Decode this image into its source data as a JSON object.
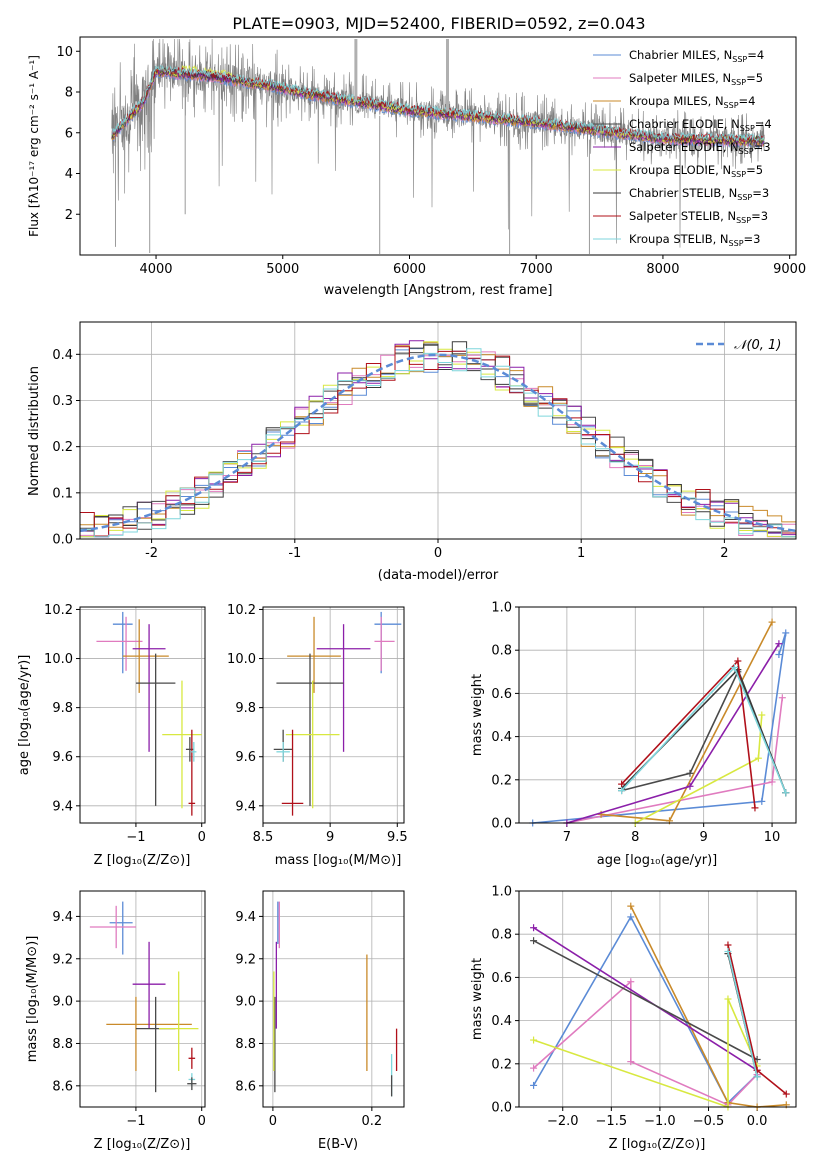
{
  "chart_data": [
    {
      "id": "spectrum",
      "type": "line",
      "title": "PLATE=0903, MJD=52400, FIBERID=0592, z=0.043",
      "xlabel": "wavelength [Angstrom, rest frame]",
      "ylabel": "Flux [fλ10⁻¹⁷ erg cm⁻² s⁻¹ A⁻¹]",
      "xlim": [
        3400,
        9050
      ],
      "ylim": [
        0,
        10.7
      ],
      "xticks": [
        4000,
        5000,
        6000,
        7000,
        8000,
        9000
      ],
      "yticks": [
        2,
        4,
        6,
        8,
        10
      ],
      "grid": false,
      "legend_position": "top-right",
      "legend": [
        {
          "label": "Chabrier MILES, N",
          "sub": "SSP",
          "tail": "=4",
          "color": "#5b8bd6"
        },
        {
          "label": "Salpeter MILES, N",
          "sub": "SSP",
          "tail": "=5",
          "color": "#e07bbf"
        },
        {
          "label": "Kroupa MILES, N",
          "sub": "SSP",
          "tail": "=4",
          "color": "#c98a2a"
        },
        {
          "label": "Chabrier ELODIE, N",
          "sub": "SSP",
          "tail": "=4",
          "color": "#4a4a4a"
        },
        {
          "label": "Salpeter ELODIE, N",
          "sub": "SSP",
          "tail": "=3",
          "color": "#8b1fa9"
        },
        {
          "label": "Kroupa ELODIE, N",
          "sub": "SSP",
          "tail": "=5",
          "color": "#d8e840"
        },
        {
          "label": "Chabrier STELIB, N",
          "sub": "SSP",
          "tail": "=3",
          "color": "#3a3a3a"
        },
        {
          "label": "Salpeter STELIB, N",
          "sub": "SSP",
          "tail": "=3",
          "color": "#b0101a"
        },
        {
          "label": "Kroupa STELIB, N",
          "sub": "SSP",
          "tail": "=3",
          "color": "#7fd6dc"
        }
      ],
      "data_color": "#808080",
      "data_x_range": [
        3650,
        8800
      ],
      "model_x_range": [
        3650,
        8800
      ],
      "continuum_points": [
        [
          3650,
          5.8
        ],
        [
          3900,
          7.5
        ],
        [
          4000,
          9.0
        ],
        [
          4200,
          8.9
        ],
        [
          4500,
          8.7
        ],
        [
          4900,
          8.3
        ],
        [
          5200,
          7.9
        ],
        [
          5600,
          7.5
        ],
        [
          6000,
          7.1
        ],
        [
          6500,
          6.8
        ],
        [
          7000,
          6.5
        ],
        [
          7500,
          6.1
        ],
        [
          8000,
          5.7
        ],
        [
          8800,
          5.6
        ]
      ]
    },
    {
      "id": "residuals",
      "type": "histogram",
      "xlabel": "(data-model)/error",
      "ylabel": "Normed distribution",
      "xlim": [
        -2.5,
        2.5
      ],
      "ylim": [
        0,
        0.47
      ],
      "xticks": [
        -2,
        -1,
        0,
        1,
        2
      ],
      "yticks": [
        0.0,
        0.1,
        0.2,
        0.3,
        0.4
      ],
      "grid": true,
      "legend": [
        {
          "label": "𝒩(0, 1)",
          "color": "#5b8bd6",
          "style": "dashed"
        }
      ],
      "bin_width": 0.1,
      "series_colors": [
        "#5b8bd6",
        "#e07bbf",
        "#c98a2a",
        "#4a4a4a",
        "#8b1fa9",
        "#d8e840",
        "#3a3a3a",
        "#b0101a",
        "#7fd6dc"
      ]
    },
    {
      "id": "age-vs-Z",
      "type": "errorbar",
      "xlabel": "Z [log₁₀(Z/Z⊙)]",
      "ylabel": "age  [log₁₀(age/yr)]",
      "xlim": [
        -1.85,
        0.05
      ],
      "ylim": [
        9.33,
        10.21
      ],
      "xticks": [
        -1,
        0
      ],
      "xtick_labels": [
        "−1",
        "0"
      ],
      "yticks": [
        9.4,
        9.6,
        9.8,
        10.0,
        10.2
      ],
      "grid": true,
      "points": [
        {
          "x": -1.2,
          "y": 10.14,
          "xerr": [
            0.15,
            0.15
          ],
          "yerr": [
            0.2,
            0.05
          ],
          "color": "#5b8bd6"
        },
        {
          "x": -1.15,
          "y": 10.07,
          "xerr": [
            0.45,
            0.25
          ],
          "yerr": [
            0.12,
            0.1
          ],
          "color": "#e07bbf"
        },
        {
          "x": -0.95,
          "y": 10.01,
          "xerr": [
            0.25,
            0.45
          ],
          "yerr": [
            0.15,
            0.15
          ],
          "color": "#c98a2a"
        },
        {
          "x": -0.8,
          "y": 10.04,
          "xerr": [
            0.25,
            0.25
          ],
          "yerr": [
            0.42,
            0.1
          ],
          "color": "#8b1fa9"
        },
        {
          "x": -0.7,
          "y": 9.9,
          "xerr": [
            0.3,
            0.3
          ],
          "yerr": [
            0.5,
            0.12
          ],
          "color": "#4a4a4a"
        },
        {
          "x": -0.3,
          "y": 9.69,
          "xerr": [
            0.3,
            0.3
          ],
          "yerr": [
            0.3,
            0.22
          ],
          "color": "#d8e840"
        },
        {
          "x": -0.18,
          "y": 9.63,
          "xerr": [
            0.06,
            0.06
          ],
          "yerr": [
            0.05,
            0.05
          ],
          "color": "#4a4a4a"
        },
        {
          "x": -0.15,
          "y": 9.41,
          "xerr": [
            0.05,
            0.05
          ],
          "yerr": [
            0.05,
            0.3
          ],
          "color": "#b0101a"
        },
        {
          "x": -0.12,
          "y": 9.62,
          "xerr": [
            0.04,
            0.04
          ],
          "yerr": [
            0.04,
            0.04
          ],
          "color": "#7fd6dc"
        }
      ]
    },
    {
      "id": "age-vs-mass",
      "type": "errorbar",
      "xlabel": "mass [log₁₀(M/M⊙)]",
      "ylabel": "",
      "xlim": [
        8.5,
        9.55
      ],
      "ylim": [
        9.33,
        10.21
      ],
      "xticks": [
        8.5,
        9.0,
        9.5
      ],
      "yticks": [
        9.4,
        9.6,
        9.8,
        10.0,
        10.2
      ],
      "grid": true,
      "points": [
        {
          "x": 9.38,
          "y": 10.14,
          "xerr": [
            0.05,
            0.15
          ],
          "yerr": [
            0.2,
            0.05
          ],
          "color": "#5b8bd6"
        },
        {
          "x": 9.38,
          "y": 10.07,
          "xerr": [
            0.05,
            0.1
          ],
          "yerr": [
            0.12,
            0.1
          ],
          "color": "#e07bbf"
        },
        {
          "x": 8.88,
          "y": 10.01,
          "xerr": [
            0.2,
            0.2
          ],
          "yerr": [
            0.15,
            0.16
          ],
          "color": "#c98a2a"
        },
        {
          "x": 9.1,
          "y": 10.04,
          "xerr": [
            0.2,
            0.2
          ],
          "yerr": [
            0.42,
            0.1
          ],
          "color": "#8b1fa9"
        },
        {
          "x": 8.85,
          "y": 9.9,
          "xerr": [
            0.25,
            0.25
          ],
          "yerr": [
            0.5,
            0.12
          ],
          "color": "#4a4a4a"
        },
        {
          "x": 8.87,
          "y": 9.69,
          "xerr": [
            0.2,
            0.2
          ],
          "yerr": [
            0.3,
            0.22
          ],
          "color": "#d8e840"
        },
        {
          "x": 8.65,
          "y": 9.63,
          "xerr": [
            0.07,
            0.07
          ],
          "yerr": [
            0.05,
            0.08
          ],
          "color": "#4a4a4a"
        },
        {
          "x": 8.72,
          "y": 9.41,
          "xerr": [
            0.08,
            0.08
          ],
          "yerr": [
            0.05,
            0.3
          ],
          "color": "#b0101a"
        },
        {
          "x": 8.65,
          "y": 9.62,
          "xerr": [
            0.05,
            0.05
          ],
          "yerr": [
            0.04,
            0.04
          ],
          "color": "#7fd6dc"
        }
      ]
    },
    {
      "id": "weight-vs-age",
      "type": "line",
      "xlabel": "age  [log₁₀(age/yr)]",
      "ylabel": "mass weight",
      "xlim": [
        6.3,
        10.35
      ],
      "ylim": [
        0,
        1.0
      ],
      "xticks": [
        7,
        8,
        9,
        10
      ],
      "yticks": [
        0.0,
        0.2,
        0.4,
        0.6,
        0.8,
        1.0
      ],
      "grid": true,
      "series": [
        {
          "color": "#5b8bd6",
          "points": [
            [
              6.5,
              0.0
            ],
            [
              9.85,
              0.1
            ],
            [
              10.2,
              0.88
            ],
            [
              10.1,
              0.78
            ]
          ]
        },
        {
          "color": "#e07bbf",
          "points": [
            [
              7.0,
              0.0
            ],
            [
              10.0,
              0.19
            ],
            [
              10.15,
              0.58
            ]
          ]
        },
        {
          "color": "#c98a2a",
          "points": [
            [
              7.5,
              0.04
            ],
            [
              8.5,
              0.01
            ],
            [
              10.0,
              0.93
            ]
          ]
        },
        {
          "color": "#8b1fa9",
          "points": [
            [
              7.0,
              0.0
            ],
            [
              8.8,
              0.17
            ],
            [
              10.1,
              0.83
            ]
          ]
        },
        {
          "color": "#4a4a4a",
          "points": [
            [
              7.8,
              0.15
            ],
            [
              8.8,
              0.23
            ],
            [
              9.5,
              0.7
            ],
            [
              10.2,
              0.14
            ]
          ]
        },
        {
          "color": "#d8e840",
          "points": [
            [
              8.0,
              0.0
            ],
            [
              9.8,
              0.3
            ],
            [
              9.85,
              0.5
            ]
          ]
        },
        {
          "color": "#3a3a3a",
          "points": [
            [
              7.8,
              0.16
            ],
            [
              9.5,
              0.71
            ],
            [
              10.2,
              0.14
            ]
          ]
        },
        {
          "color": "#b0101a",
          "points": [
            [
              7.8,
              0.18
            ],
            [
              9.5,
              0.75
            ],
            [
              9.75,
              0.07
            ]
          ]
        },
        {
          "color": "#7fd6dc",
          "points": [
            [
              7.8,
              0.15
            ],
            [
              9.45,
              0.72
            ],
            [
              10.2,
              0.14
            ]
          ]
        }
      ]
    },
    {
      "id": "mass-vs-Z",
      "type": "errorbar",
      "xlabel": "Z [log₁₀(Z/Z⊙)]",
      "ylabel": "mass [log₁₀(M/M⊙)]",
      "xlim": [
        -1.85,
        0.05
      ],
      "ylim": [
        8.5,
        9.52
      ],
      "xticks": [
        -1,
        0
      ],
      "xtick_labels": [
        "−1",
        "0"
      ],
      "yticks": [
        8.6,
        8.8,
        9.0,
        9.2,
        9.4
      ],
      "grid": true,
      "points": [
        {
          "x": -1.2,
          "y": 9.37,
          "xerr": [
            0.2,
            0.15
          ],
          "yerr": [
            0.15,
            0.1
          ],
          "color": "#5b8bd6"
        },
        {
          "x": -1.3,
          "y": 9.35,
          "xerr": [
            0.4,
            0.3
          ],
          "yerr": [
            0.1,
            0.1
          ],
          "color": "#e07bbf"
        },
        {
          "x": -1.0,
          "y": 8.89,
          "xerr": [
            0.45,
            0.85
          ],
          "yerr": [
            0.22,
            0.13
          ],
          "color": "#c98a2a"
        },
        {
          "x": -0.8,
          "y": 9.08,
          "xerr": [
            0.25,
            0.25
          ],
          "yerr": [
            0.21,
            0.2
          ],
          "color": "#8b1fa9"
        },
        {
          "x": -0.7,
          "y": 8.87,
          "xerr": [
            0.3,
            0.3
          ],
          "yerr": [
            0.3,
            0.15
          ],
          "color": "#4a4a4a"
        },
        {
          "x": -0.35,
          "y": 8.87,
          "xerr": [
            0.3,
            0.3
          ],
          "yerr": [
            0.2,
            0.27
          ],
          "color": "#d8e840"
        },
        {
          "x": -0.15,
          "y": 8.73,
          "xerr": [
            0.05,
            0.05
          ],
          "yerr": [
            0.05,
            0.05
          ],
          "color": "#b0101a"
        },
        {
          "x": -0.15,
          "y": 8.63,
          "xerr": [
            0.05,
            0.05
          ],
          "yerr": [
            0.03,
            0.03
          ],
          "color": "#7fd6dc"
        },
        {
          "x": -0.15,
          "y": 8.61,
          "xerr": [
            0.07,
            0.07
          ],
          "yerr": [
            0.03,
            0.03
          ],
          "color": "#4a4a4a"
        }
      ]
    },
    {
      "id": "mass-vs-EBV",
      "type": "errorbar",
      "xlabel": "E(B-V)",
      "ylabel": "",
      "xlim": [
        -0.02,
        0.265
      ],
      "ylim": [
        8.5,
        9.52
      ],
      "xticks": [
        0.0,
        0.2
      ],
      "yticks": [
        8.6,
        8.8,
        9.0,
        9.2,
        9.4
      ],
      "grid": true,
      "points": [
        {
          "x": 0.01,
          "y": 9.37,
          "xerr": [
            0,
            0
          ],
          "yerr": [
            0.1,
            0.1
          ],
          "color": "#5b8bd6"
        },
        {
          "x": 0.013,
          "y": 9.35,
          "xerr": [
            0,
            0
          ],
          "yerr": [
            0.1,
            0.12
          ],
          "color": "#e07bbf"
        },
        {
          "x": 0.19,
          "y": 8.89,
          "xerr": [
            0,
            0
          ],
          "yerr": [
            0.22,
            0.33
          ],
          "color": "#c98a2a"
        },
        {
          "x": 0.007,
          "y": 9.08,
          "xerr": [
            0,
            0
          ],
          "yerr": [
            0.21,
            0.2
          ],
          "color": "#8b1fa9"
        },
        {
          "x": 0.004,
          "y": 8.87,
          "xerr": [
            0,
            0
          ],
          "yerr": [
            0.3,
            0.15
          ],
          "color": "#4a4a4a"
        },
        {
          "x": 0.002,
          "y": 8.87,
          "xerr": [
            0,
            0
          ],
          "yerr": [
            0.2,
            0.27
          ],
          "color": "#d8e840"
        },
        {
          "x": 0.25,
          "y": 8.77,
          "xerr": [
            0,
            0
          ],
          "yerr": [
            0.1,
            0.1
          ],
          "color": "#b0101a"
        },
        {
          "x": 0.24,
          "y": 8.65,
          "xerr": [
            0,
            0
          ],
          "yerr": [
            0.1,
            0.1
          ],
          "color": "#7fd6dc"
        },
        {
          "x": 0.24,
          "y": 8.6,
          "xerr": [
            0,
            0
          ],
          "yerr": [
            0.05,
            0.05
          ],
          "color": "#4a4a4a"
        }
      ]
    },
    {
      "id": "weight-vs-Z",
      "type": "line",
      "xlabel": "Z [log₁₀(Z/Z⊙)]",
      "ylabel": "mass weight",
      "xlim": [
        -2.45,
        0.4
      ],
      "ylim": [
        0,
        1.0
      ],
      "xticks": [
        -2.0,
        -1.5,
        -1.0,
        -0.5,
        0.0
      ],
      "xtick_labels": [
        "−2.0",
        "−1.5",
        "−1.0",
        "−0.5",
        "0.0"
      ],
      "yticks": [
        0.0,
        0.2,
        0.4,
        0.6,
        0.8,
        1.0
      ],
      "grid": true,
      "series": [
        {
          "color": "#5b8bd6",
          "points": [
            [
              -2.3,
              0.1
            ],
            [
              -1.3,
              0.88
            ],
            [
              -0.3,
              0.02
            ],
            [
              0.0,
              0.15
            ]
          ]
        },
        {
          "color": "#e07bbf",
          "points": [
            [
              -2.3,
              0.18
            ],
            [
              -1.3,
              0.58
            ],
            [
              -1.3,
              0.21
            ],
            [
              -0.3,
              0.01
            ],
            [
              0.0,
              0.15
            ]
          ]
        },
        {
          "color": "#c98a2a",
          "points": [
            [
              -1.3,
              0.93
            ],
            [
              -0.3,
              0.02
            ],
            [
              0.0,
              0.0
            ],
            [
              0.3,
              0.01
            ]
          ]
        },
        {
          "color": "#8b1fa9",
          "points": [
            [
              -2.3,
              0.83
            ],
            [
              0.0,
              0.17
            ]
          ]
        },
        {
          "color": "#4a4a4a",
          "points": [
            [
              -2.3,
              0.77
            ],
            [
              0.0,
              0.22
            ]
          ]
        },
        {
          "color": "#d8e840",
          "points": [
            [
              -2.3,
              0.31
            ],
            [
              -0.3,
              0.0
            ],
            [
              -0.3,
              0.5
            ],
            [
              0.0,
              0.19
            ]
          ]
        },
        {
          "color": "#3a3a3a",
          "points": [
            [
              -0.3,
              0.71
            ],
            [
              0.0,
              0.14
            ]
          ]
        },
        {
          "color": "#b0101a",
          "points": [
            [
              -0.3,
              0.75
            ],
            [
              0.0,
              0.17
            ],
            [
              0.3,
              0.06
            ]
          ]
        },
        {
          "color": "#7fd6dc",
          "points": [
            [
              -0.3,
              0.72
            ],
            [
              0.0,
              0.14
            ]
          ]
        }
      ]
    }
  ]
}
